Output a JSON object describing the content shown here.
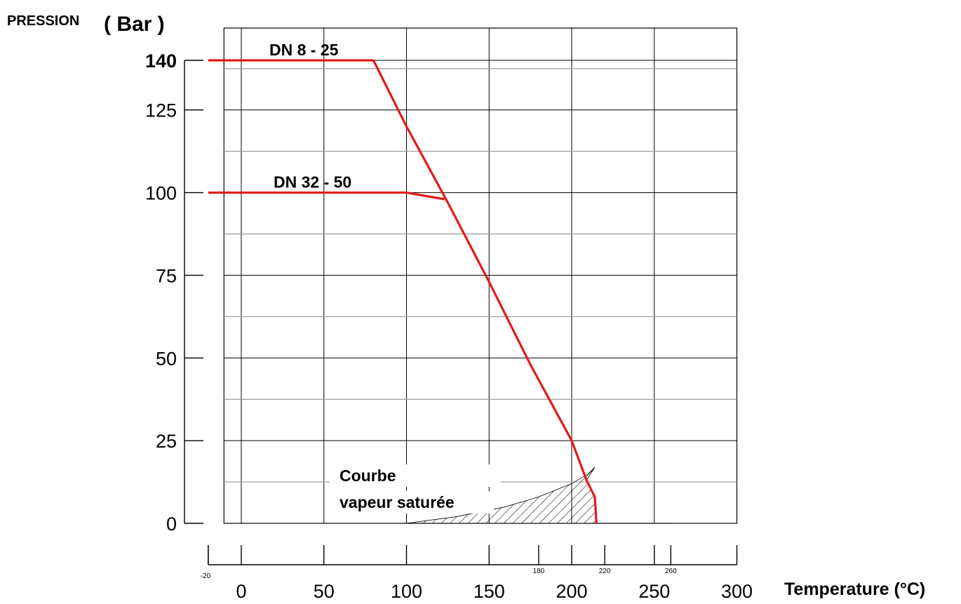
{
  "chart_data": {
    "type": "line",
    "title": "",
    "ylabel": "PRESSION",
    "ylabel_unit": "( Bar )",
    "xlabel": "Temperature (°C)",
    "xlim": [
      -20,
      300
    ],
    "ylim": [
      0,
      140
    ],
    "y_ticks": [
      {
        "value": 140,
        "label": "140",
        "emphasized": true
      },
      {
        "value": 125,
        "label": "125",
        "emphasized": false
      },
      {
        "value": 100,
        "label": "100",
        "emphasized": false
      },
      {
        "value": 75,
        "label": "75",
        "emphasized": false
      },
      {
        "value": 50,
        "label": "50",
        "emphasized": false
      },
      {
        "value": 25,
        "label": "25",
        "emphasized": false
      },
      {
        "value": 0,
        "label": "0",
        "emphasized": false
      }
    ],
    "x_ticks": [
      0,
      50,
      100,
      150,
      200,
      250,
      300
    ],
    "x_ticks_small": [
      {
        "value": -20,
        "label": "-20"
      },
      {
        "value": 180,
        "label": "180"
      },
      {
        "value": 220,
        "label": "220"
      },
      {
        "value": 260,
        "label": "260"
      }
    ],
    "grid": true,
    "grid_y_minor": [
      12.5,
      37.5,
      62.5,
      87.5,
      112.5,
      137.5
    ],
    "series": [
      {
        "name": "DN 8 - 25",
        "color": "#e21a1a",
        "x": [
          -20,
          80,
          100,
          125,
          150,
          175,
          200,
          209,
          214,
          215
        ],
        "y": [
          140,
          140,
          120,
          97,
          73,
          48,
          25,
          13,
          8,
          0
        ]
      },
      {
        "name": "DN 32 - 50",
        "color": "#e21a1a",
        "x": [
          -20,
          100,
          123
        ],
        "y": [
          100,
          100,
          98
        ]
      }
    ],
    "annotations": [
      {
        "text": "Courbe",
        "x": 85,
        "y": 14
      },
      {
        "text": "vapeur saturée",
        "x": 85,
        "y": 6
      }
    ],
    "saturated_steam_curve": {
      "x": [
        100,
        130,
        160,
        180,
        200,
        210,
        214
      ],
      "y": [
        0,
        2,
        5,
        8,
        12,
        15,
        17
      ]
    }
  }
}
